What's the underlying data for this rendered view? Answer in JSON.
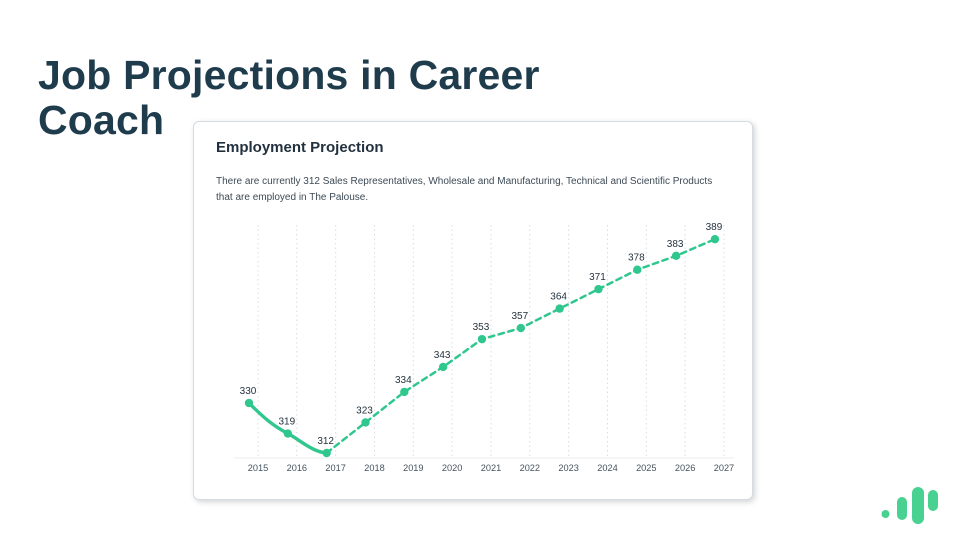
{
  "slide": {
    "title": "Job Projections in Career Coach",
    "title_lines": [
      "Job Projections in Career",
      "Coach"
    ],
    "title_color": "#1f3c4d",
    "background_color": "#ffffff"
  },
  "card": {
    "header": "Employment Projection",
    "description": "There are currently 312 Sales Representatives, Wholesale and Manufacturing, Technical and Scientific Products that are employed in The Palouse.",
    "description_lines": [
      "There are currently 312 Sales Representatives, Wholesale and Manufacturing, Technical and Scientific Products",
      "that are employed in The Palouse."
    ]
  },
  "chart_data": {
    "type": "line",
    "title": "Employment Projection",
    "x": [
      2015,
      2016,
      2017,
      2018,
      2019,
      2020,
      2021,
      2022,
      2023,
      2024,
      2025,
      2026,
      2027
    ],
    "values": [
      330,
      319,
      312,
      323,
      334,
      343,
      353,
      357,
      364,
      371,
      378,
      383,
      389
    ],
    "series": [
      {
        "name": "Employment",
        "values": [
          330,
          319,
          312,
          323,
          334,
          343,
          353,
          357,
          364,
          371,
          378,
          383,
          389
        ]
      }
    ],
    "solid_until_index": 2,
    "point_labels_visible": true,
    "y_axis_visible": false,
    "grid": true,
    "legend_position": "none",
    "xlabel": "",
    "ylabel": "",
    "ylim": [
      305,
      395
    ],
    "line_color": "#2fc78e",
    "marker_color": "#2fc78e",
    "value_label_color": "#25333f",
    "year_label_color": "#45535f",
    "grid_color": "#d8dce0"
  },
  "logo": {
    "icon": "bar-chart-logo",
    "color": "#48d190"
  }
}
